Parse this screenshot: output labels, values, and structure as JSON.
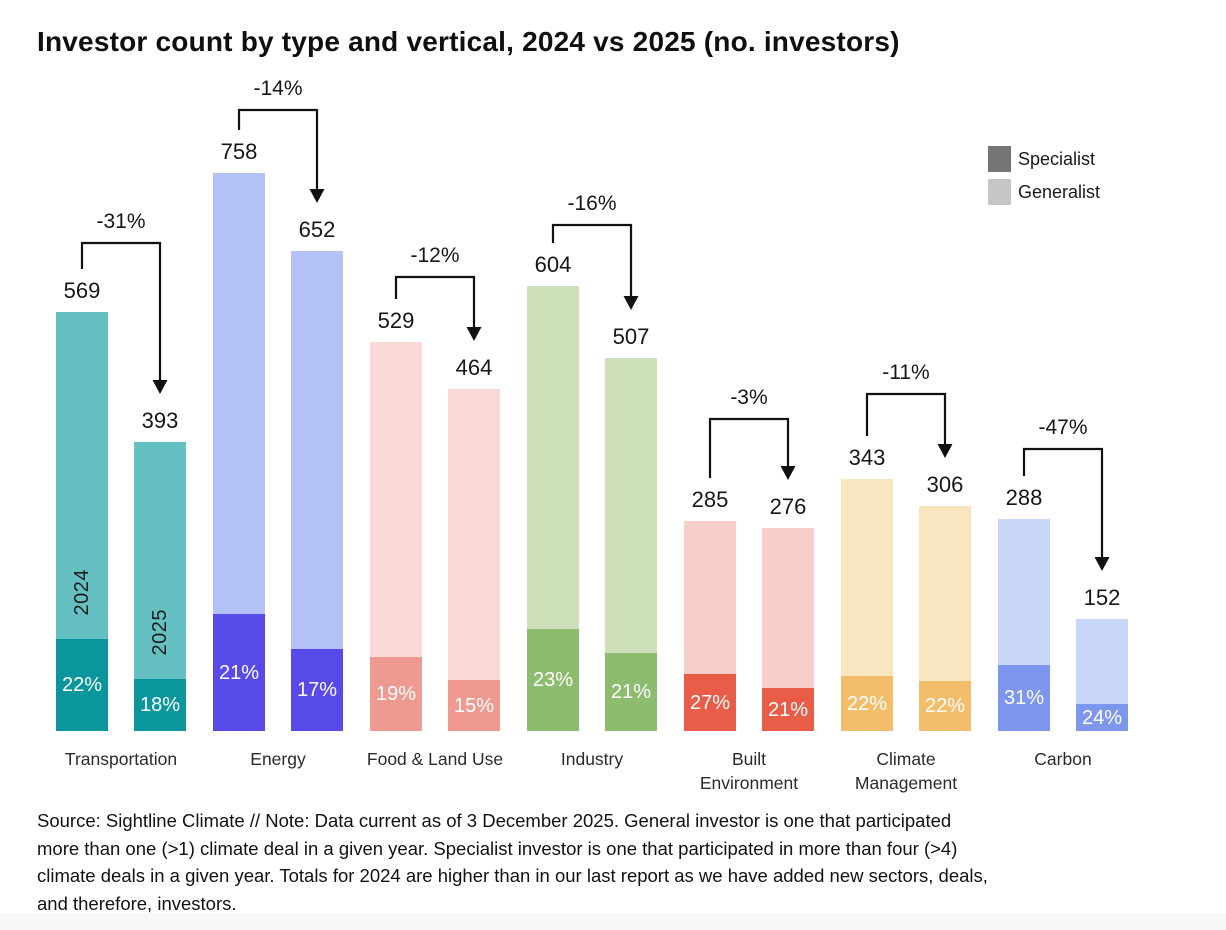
{
  "chart_data": {
    "type": "bar",
    "variant": "grouped columns, stacked by specialist share",
    "title": "Investor count by type and vertical, 2024 vs 2025 (no. investors)",
    "years": [
      "2024",
      "2025"
    ],
    "unit": "no. investors",
    "grid": false,
    "y_axis_shown": false,
    "max_value": 758,
    "legend_position": "top-right",
    "in_bar_year_labels": {
      "category": "Transportation",
      "labels": [
        "2024",
        "2025"
      ]
    },
    "groups": [
      {
        "category": "Transportation",
        "label_lines": [
          "Transportation"
        ],
        "totals": [
          569,
          393
        ],
        "specialist_pct": [
          22,
          18
        ],
        "change": "-31%",
        "generalist_color": "#64C0C3",
        "specialist_color": "#0A969C"
      },
      {
        "category": "Energy",
        "label_lines": [
          "Energy"
        ],
        "totals": [
          758,
          652
        ],
        "specialist_pct": [
          21,
          17
        ],
        "change": "-14%",
        "generalist_color": "#B3C1F6",
        "specialist_color": "#574AE8"
      },
      {
        "category": "Food & Land Use",
        "label_lines": [
          "Food & Land Use"
        ],
        "totals": [
          529,
          464
        ],
        "specialist_pct": [
          19,
          15
        ],
        "change": "-12%",
        "generalist_color": "#F9D9D5",
        "specialist_color": "#EF9A90"
      },
      {
        "category": "Industry",
        "label_lines": [
          "Industry"
        ],
        "totals": [
          604,
          507
        ],
        "specialist_pct": [
          23,
          21
        ],
        "change": "-16%",
        "generalist_color": "#CDE0BA",
        "specialist_color": "#8EBC6F"
      },
      {
        "category": "Built Environment",
        "label_lines": [
          "Built",
          "Environment"
        ],
        "totals": [
          285,
          276
        ],
        "specialist_pct": [
          27,
          21
        ],
        "change": "-3%",
        "generalist_color": "#F7CEC9",
        "specialist_color": "#E85C48"
      },
      {
        "category": "Climate Management",
        "label_lines": [
          "Climate",
          "Management"
        ],
        "totals": [
          343,
          306
        ],
        "specialist_pct": [
          22,
          22
        ],
        "change": "-11%",
        "generalist_color": "#F8E6C1",
        "specialist_color": "#F3BE6B"
      },
      {
        "category": "Carbon",
        "label_lines": [
          "Carbon"
        ],
        "totals": [
          288,
          152
        ],
        "specialist_pct": [
          31,
          24
        ],
        "change": "-47%",
        "generalist_color": "#C8D6F9",
        "specialist_color": "#7E97EE"
      }
    ]
  },
  "legend": {
    "items": [
      {
        "label": "Specialist",
        "color": "#757575"
      },
      {
        "label": "Generalist",
        "color": "#C6C6C6"
      }
    ]
  },
  "source_note_lines": [
    "Source: Sightline Climate  //  Note: Data current as of 3 December 2025. General investor is one that participated",
    "more than one (>1) climate deal in a given year. Specialist investor is one that participated in more than four (>4)",
    "climate deals in a given year. Totals for 2024 are higher than in our last report as we have added new sectors, deals,",
    "and therefore, investors."
  ],
  "colors": {
    "background": "#FFFFFF",
    "footer_strip": "#F7F8FA",
    "arrow": "#111111",
    "text": "#161616"
  }
}
